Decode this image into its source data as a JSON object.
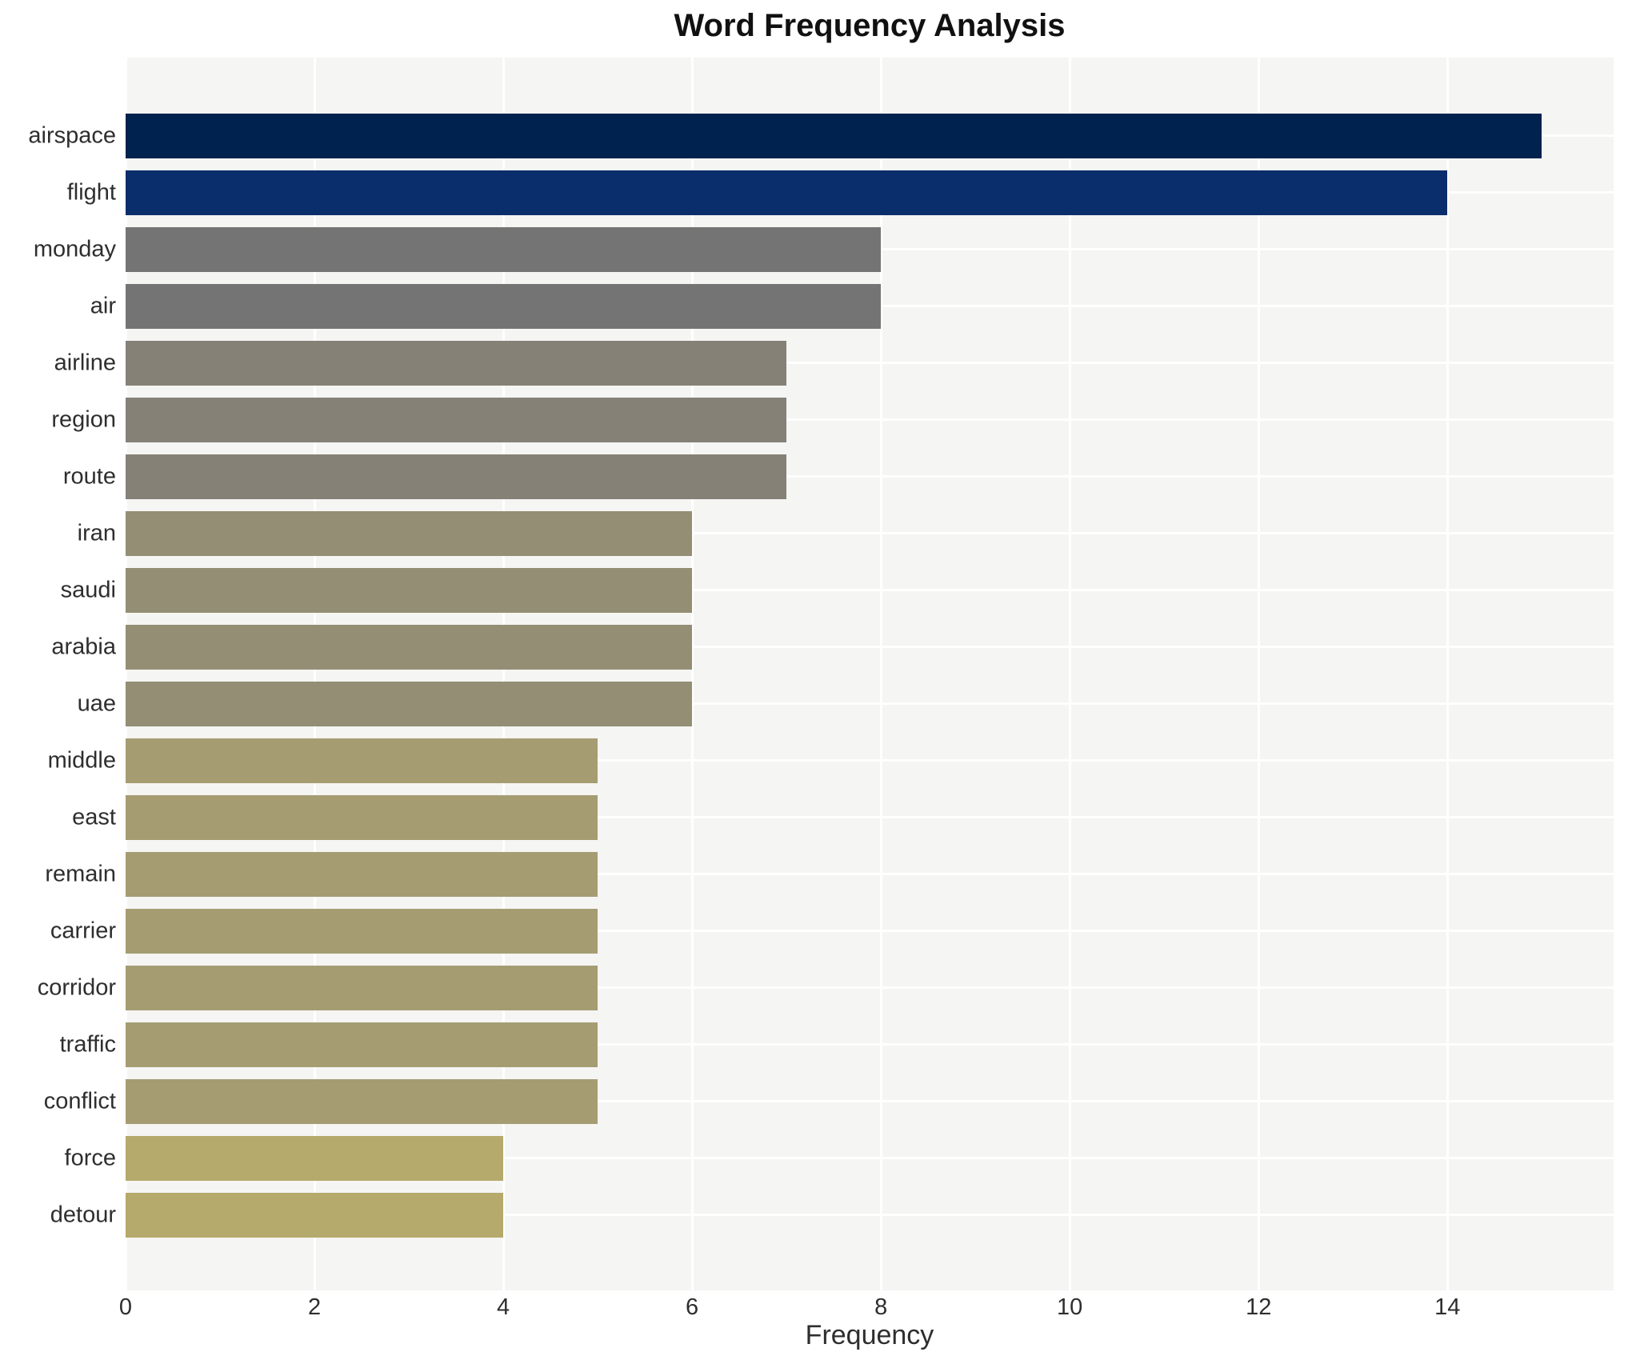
{
  "chart_data": {
    "type": "bar",
    "orientation": "horizontal",
    "title": "Word Frequency Analysis",
    "xlabel": "Frequency",
    "ylabel": "",
    "categories": [
      "airspace",
      "flight",
      "monday",
      "air",
      "airline",
      "region",
      "route",
      "iran",
      "saudi",
      "arabia",
      "uae",
      "middle",
      "east",
      "remain",
      "carrier",
      "corridor",
      "traffic",
      "conflict",
      "force",
      "detour"
    ],
    "values": [
      15,
      14,
      8,
      8,
      7,
      7,
      7,
      6,
      6,
      6,
      6,
      5,
      5,
      5,
      5,
      5,
      5,
      5,
      4,
      4
    ],
    "bar_colors": [
      "#00224e",
      "#0a2d6b",
      "#757474",
      "#757474",
      "#858177",
      "#858177",
      "#858177",
      "#938e74",
      "#938e74",
      "#938e74",
      "#938e74",
      "#a59c72",
      "#a59c72",
      "#a59c72",
      "#a59c72",
      "#a59c72",
      "#a59c72",
      "#a59c72",
      "#b5a96c",
      "#b5a96c"
    ],
    "xlim": [
      0,
      15.76
    ],
    "xticks": [
      0,
      2,
      4,
      6,
      8,
      10,
      12,
      14
    ],
    "grid": "on",
    "gridline_color": "#ffffff",
    "plot_bg": "#f5f5f3",
    "figure_bg": "#ffffff",
    "text_color": "#2e2e2e",
    "title_color": "#111111",
    "legend": "none"
  }
}
